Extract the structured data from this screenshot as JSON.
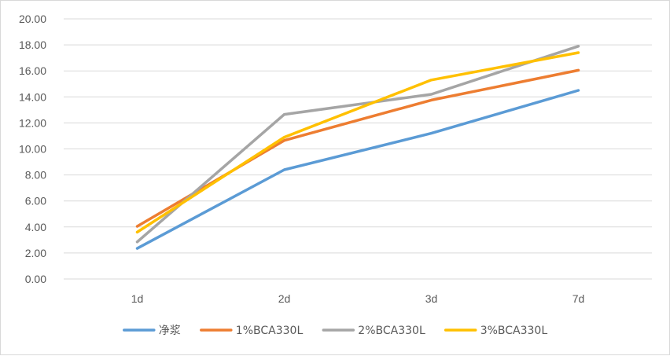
{
  "chart_data": {
    "type": "line",
    "x": [
      "1d",
      "2d",
      "3d",
      "7d"
    ],
    "ylim": [
      0,
      20
    ],
    "yticks": [
      "0.00",
      "2.00",
      "4.00",
      "6.00",
      "8.00",
      "10.00",
      "12.00",
      "14.00",
      "16.00",
      "18.00",
      "20.00"
    ],
    "grid": true,
    "legend_position": "bottom",
    "series": [
      {
        "name": "净浆",
        "color": "#5b9bd5",
        "values": [
          2.35,
          8.4,
          11.2,
          14.5
        ]
      },
      {
        "name": "1%BCA330L",
        "color": "#ed7d31",
        "values": [
          4.05,
          10.65,
          13.75,
          16.05
        ]
      },
      {
        "name": "2%BCA330L",
        "color": "#a5a5a5",
        "values": [
          2.85,
          12.65,
          14.2,
          17.9
        ]
      },
      {
        "name": "3%BCA330L",
        "color": "#ffc000",
        "values": [
          3.6,
          10.9,
          15.3,
          17.4
        ]
      }
    ]
  }
}
